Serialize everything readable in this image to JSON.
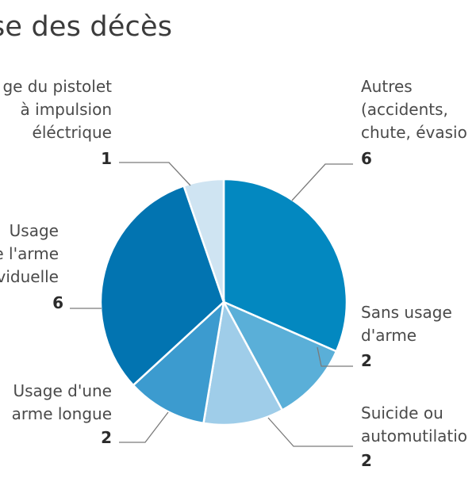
{
  "chart_data": {
    "type": "pie",
    "title": "se des décès",
    "categories": [
      "Autres (accidents, chute, évasio",
      "Sans usage d'arme",
      "Suicide ou automutilatio",
      "Usage du pistolet à impulsion éléctrique",
      "Usage d'une arme longue",
      "Usage de l'arme individuelle"
    ],
    "values": [
      6,
      2,
      2,
      1,
      2,
      6
    ],
    "slices": [
      {
        "key": "autres",
        "label_lines": [
          "Autres",
          "(accidents,",
          "chute, évasio"
        ],
        "value": 6,
        "color": "#0388c0"
      },
      {
        "key": "sans-usage",
        "label_lines": [
          "Sans usage",
          "d'arme"
        ],
        "value": 2,
        "color": "#5aafd8"
      },
      {
        "key": "suicide",
        "label_lines": [
          "Suicide ou",
          "automutilatio"
        ],
        "value": 2,
        "color": "#9fcde9"
      },
      {
        "key": "arme-longue",
        "label_lines": [
          "Usage d'une",
          "arme longue"
        ],
        "value": 2,
        "color": "#3c9bcf"
      },
      {
        "key": "arme-individuelle",
        "label_lines": [
          "Usage",
          "de l'arme",
          "individuelle"
        ],
        "value": 6,
        "color": "#0274b1"
      },
      {
        "key": "pistolet",
        "label_lines": [
          "ge du pistolet",
          "à impulsion",
          "éléctrique"
        ],
        "value": 1,
        "color": "#cfe4f2"
      }
    ]
  }
}
